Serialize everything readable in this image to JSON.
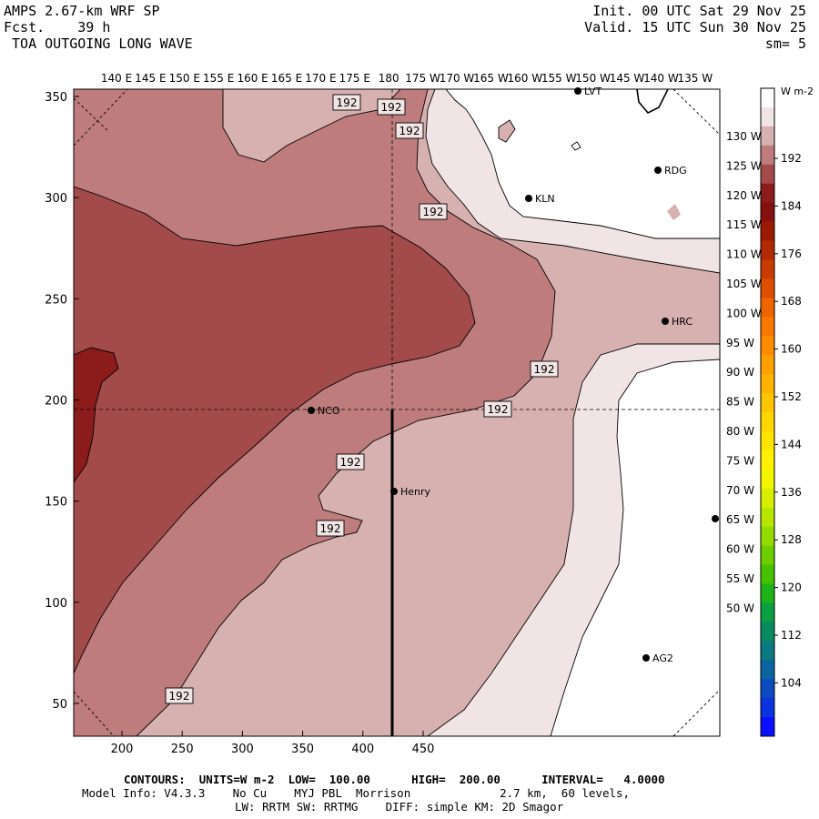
{
  "header": {
    "model_line": "AMPS 2.67-km WRF SP",
    "forecast_label": "Fcst.",
    "forecast_value": "39 h",
    "field_name": "TOA OUTGOING LONG WAVE",
    "init_line": "Init. 00 UTC Sat 29 Nov 25",
    "valid_line": "Valid. 15 UTC Sun 30 Nov 25",
    "smoothing": "sm= 5"
  },
  "top_longitudes": [
    "140 E",
    "145 E",
    "150 E",
    "155 E",
    "160 E",
    "165 E",
    "170 E",
    "175 E",
    "180",
    "175 W",
    "170 W",
    "165 W",
    "160 W",
    "155 W",
    "150 W",
    "145 W",
    "140 W",
    "135 W"
  ],
  "x_ticks": [
    "200",
    "250",
    "300",
    "350",
    "400",
    "450"
  ],
  "y_ticks": [
    "350",
    "300",
    "250",
    "200",
    "150",
    "100",
    "50"
  ],
  "latitude_labels": [
    "130 W",
    "125 W",
    "120 W",
    "115 W",
    "110 W",
    "105 W",
    "100 W",
    "95 W",
    "90 W",
    "85 W",
    "80 W",
    "75 W",
    "70 W",
    "65 W",
    "60 W",
    "55 W",
    "50 W"
  ],
  "contour_labels": [
    "192",
    "192",
    "192",
    "192",
    "192",
    "192",
    "192",
    "192",
    "192"
  ],
  "stations": [
    {
      "name": "LVT"
    },
    {
      "name": "RDG"
    },
    {
      "name": "KLN"
    },
    {
      "name": "HRC"
    },
    {
      "name": "NCO"
    },
    {
      "name": "Henry"
    },
    {
      "name": "AG2"
    }
  ],
  "colorbar": {
    "units": "W m-2",
    "labels": [
      "192",
      "184",
      "176",
      "168",
      "160",
      "152",
      "144",
      "136",
      "128",
      "120",
      "112",
      "104"
    ],
    "colors": [
      "#ffffff",
      "#f1e4e4",
      "#d7b0b0",
      "#be7c7c",
      "#a34b4b",
      "#8c1b1b",
      "#861010",
      "#9c1a00",
      "#b22a00",
      "#c83c00",
      "#de5000",
      "#f06400",
      "#f87800",
      "#ff8c00",
      "#ff9f00",
      "#ffb200",
      "#ffc400",
      "#ffd500",
      "#ffe400",
      "#fff100",
      "#f3f500",
      "#d8ee00",
      "#b8e600",
      "#94dc00",
      "#6ecf00",
      "#45c200",
      "#1fb31a",
      "#0a9f40",
      "#0a8a60",
      "#0a7a80",
      "#0a64a0",
      "#0a4cbf",
      "#0a32df",
      "#0a10ff"
    ]
  },
  "footer": {
    "contours_line": "CONTOURS:  UNITS=W m-2  LOW=  100.00      HIGH=  200.00      INTERVAL=   4.0000",
    "model_info_line": "Model Info: V4.3.3    No Cu    MYJ PBL  Morrison             2.7 km,  60 levels,",
    "physics_line": "LW: RRTM SW: RRTMG    DIFF: simple KM: 2D Smagor"
  }
}
